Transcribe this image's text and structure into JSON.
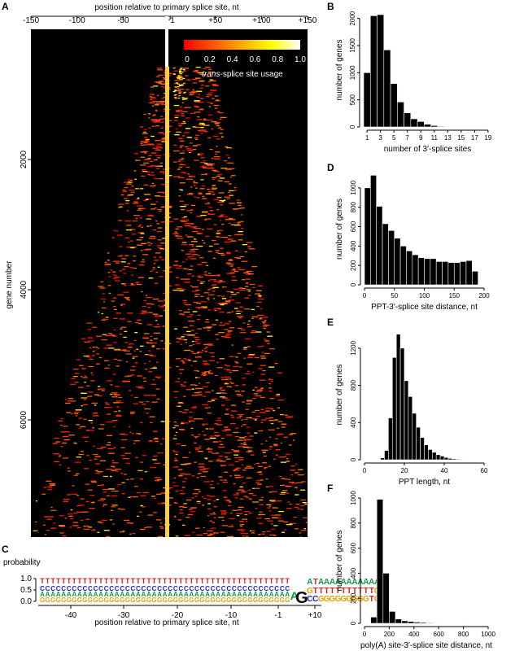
{
  "figure": {
    "panel_letters": [
      "A",
      "B",
      "C",
      "D",
      "E",
      "F"
    ]
  },
  "chart_data": [
    {
      "panel": "A",
      "type": "heatmap",
      "top_xlabel": "position relative to primary splice site, nt",
      "top_ticks": [
        "-150",
        "-100",
        "-50",
        "+1",
        "+50",
        "+100",
        "+150"
      ],
      "top_tick_values": [
        -150,
        -100,
        -50,
        1,
        50,
        100,
        150
      ],
      "ylabel": "gene number",
      "y_ticks": [
        "2000",
        "4000",
        "6000"
      ],
      "y_tick_values": [
        2000,
        4000,
        6000
      ],
      "xlim": [
        -150,
        150
      ],
      "ylim": [
        0,
        7800
      ],
      "colorbar": {
        "label_italic": "trans",
        "label_rest": "-splice site usage",
        "ticks": [
          "0",
          "0.2",
          "0.4",
          "0.6",
          "0.8",
          "1.0"
        ],
        "range": [
          0,
          1
        ],
        "colors": [
          "#ff0000",
          "#ff8800",
          "#ffff00",
          "#ffffff"
        ]
      },
      "background": "#000000",
      "primary_site_color": "#ffd040"
    },
    {
      "panel": "B",
      "type": "bar",
      "xlabel": "number of 3′-splice sites",
      "ylabel": "number of genes",
      "x_ticks": [
        "1",
        "3",
        "5",
        "7",
        "9",
        "11",
        "13",
        "15",
        "17",
        "19"
      ],
      "x_tick_values": [
        1,
        3,
        5,
        7,
        9,
        11,
        13,
        15,
        17,
        19
      ],
      "y_ticks": [
        "0",
        "500",
        "1000",
        "1500",
        "2000"
      ],
      "y_tick_values": [
        0,
        500,
        1000,
        1500,
        2000
      ],
      "xlim": [
        0.5,
        19.5
      ],
      "ylim": [
        0,
        2100
      ],
      "bin_width": 1,
      "categories": [
        1,
        2,
        3,
        4,
        5,
        6,
        7,
        8,
        9,
        10,
        11,
        12,
        13
      ],
      "values": [
        1000,
        2050,
        2070,
        1420,
        800,
        460,
        260,
        150,
        100,
        50,
        25,
        12,
        5
      ]
    },
    {
      "panel": "C",
      "type": "sequence-logo",
      "ylabel": "probability",
      "xlabel": "position relative to primary splice site, nt",
      "y_ticks": [
        "0.0",
        "0.5",
        "1.0"
      ],
      "y_tick_values": [
        0,
        0.5,
        1.0
      ],
      "x_ticks": [
        "-40",
        "-30",
        "-20",
        "-10",
        "-1",
        "+10"
      ],
      "x_tick_values": [
        -40,
        -30,
        -20,
        -10,
        -1,
        10
      ],
      "upstream_rows": [
        "T",
        "C",
        "A",
        "G"
      ],
      "upstream_positions": 47,
      "downstream_rows": [
        [
          "A",
          "T",
          "A",
          "A",
          "A",
          "A",
          "A",
          "A",
          "A",
          "A",
          "A",
          "A",
          "A",
          "A"
        ],
        [
          "G",
          "T",
          "T",
          "T",
          "T",
          "T",
          "T",
          "T",
          "T",
          "T",
          "T",
          "T",
          "G",
          "G"
        ],
        [
          "C",
          "C",
          "G",
          "G",
          "G",
          "G",
          "G",
          "G",
          "G",
          "G",
          "G",
          "T",
          "G",
          "T"
        ]
      ],
      "splice_site_letters": [
        "A",
        "G"
      ],
      "letter_colors": {
        "A": "#109648",
        "C": "#2020c8",
        "G": "#e5a000",
        "T": "#d62020",
        "G_dark": "#000000"
      }
    },
    {
      "panel": "D",
      "type": "bar",
      "xlabel": "PPT-3′-splice site distance, nt",
      "ylabel": "number of genes",
      "x_ticks": [
        "0",
        "50",
        "100",
        "150",
        "200"
      ],
      "x_tick_values": [
        0,
        50,
        100,
        150,
        200
      ],
      "y_ticks": [
        "0",
        "200",
        "400",
        "600",
        "800",
        "1000"
      ],
      "y_tick_values": [
        0,
        200,
        400,
        600,
        800,
        1000
      ],
      "xlim": [
        0,
        200
      ],
      "ylim": [
        0,
        1150
      ],
      "bin_width": 10,
      "categories": [
        0,
        10,
        20,
        30,
        40,
        50,
        60,
        70,
        80,
        90,
        100,
        110,
        120,
        130,
        140,
        150,
        160,
        170,
        180
      ],
      "values": [
        1000,
        1130,
        810,
        630,
        560,
        480,
        400,
        350,
        310,
        280,
        270,
        270,
        240,
        240,
        230,
        230,
        240,
        250,
        140
      ]
    },
    {
      "panel": "E",
      "type": "bar",
      "xlabel": "PPT length, nt",
      "ylabel": "number of genes",
      "x_ticks": [
        "0",
        "20",
        "40",
        "60"
      ],
      "x_tick_values": [
        0,
        20,
        40,
        60
      ],
      "y_ticks": [
        "0",
        "400",
        "800",
        "1200"
      ],
      "y_tick_values": [
        0,
        400,
        800,
        1200
      ],
      "xlim": [
        0,
        60
      ],
      "ylim": [
        0,
        1400
      ],
      "bin_width": 2,
      "categories": [
        8,
        10,
        12,
        14,
        16,
        18,
        20,
        22,
        24,
        26,
        28,
        30,
        32,
        34,
        36,
        38,
        40,
        42,
        44,
        46,
        48,
        50,
        52
      ],
      "values": [
        20,
        100,
        450,
        1100,
        1350,
        1200,
        850,
        680,
        500,
        350,
        240,
        160,
        110,
        80,
        55,
        40,
        25,
        15,
        10,
        7,
        5,
        3,
        2
      ]
    },
    {
      "panel": "F",
      "type": "bar",
      "xlabel": "poly(A) site-3′-splice site distance, nt",
      "ylabel": "number of genes",
      "x_ticks": [
        "0",
        "200",
        "400",
        "600",
        "800",
        "1000"
      ],
      "x_tick_values": [
        0,
        200,
        400,
        600,
        800,
        1000
      ],
      "y_ticks": [
        "0",
        "200",
        "400",
        "600",
        "800",
        "1000"
      ],
      "y_tick_values": [
        0,
        200,
        400,
        600,
        800,
        1000
      ],
      "xlim": [
        0,
        1000
      ],
      "ylim": [
        0,
        1000
      ],
      "bin_width": 50,
      "categories": [
        50,
        100,
        150,
        200,
        250,
        300,
        350,
        400,
        450,
        500,
        550,
        600,
        650,
        700,
        750,
        800
      ],
      "values": [
        50,
        990,
        400,
        95,
        35,
        20,
        15,
        10,
        8,
        5,
        4,
        3,
        3,
        2,
        2,
        1
      ]
    }
  ]
}
